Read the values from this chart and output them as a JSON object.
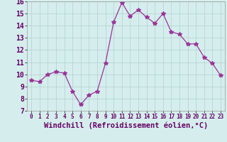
{
  "x": [
    0,
    1,
    2,
    3,
    4,
    5,
    6,
    7,
    8,
    9,
    10,
    11,
    12,
    13,
    14,
    15,
    16,
    17,
    18,
    19,
    20,
    21,
    22,
    23
  ],
  "y": [
    9.5,
    9.4,
    10.0,
    10.2,
    10.1,
    8.6,
    7.5,
    8.3,
    8.6,
    10.9,
    14.3,
    15.9,
    14.8,
    15.3,
    14.7,
    14.2,
    15.0,
    13.5,
    13.3,
    12.5,
    12.5,
    11.4,
    10.9,
    9.9
  ],
  "line_color": "#993399",
  "marker": "*",
  "marker_size": 4,
  "bg_color": "#d5eeed",
  "grid_color": "#b8d4d2",
  "xlabel": "Windchill (Refroidissement éolien,°C)",
  "xlabel_fontsize": 7.5,
  "tick_fontsize": 7,
  "ylim": [
    7,
    16
  ],
  "xlim": [
    -0.5,
    23.5
  ],
  "yticks": [
    7,
    8,
    9,
    10,
    11,
    12,
    13,
    14,
    15,
    16
  ],
  "xticks": [
    0,
    1,
    2,
    3,
    4,
    5,
    6,
    7,
    8,
    9,
    10,
    11,
    12,
    13,
    14,
    15,
    16,
    17,
    18,
    19,
    20,
    21,
    22,
    23
  ]
}
